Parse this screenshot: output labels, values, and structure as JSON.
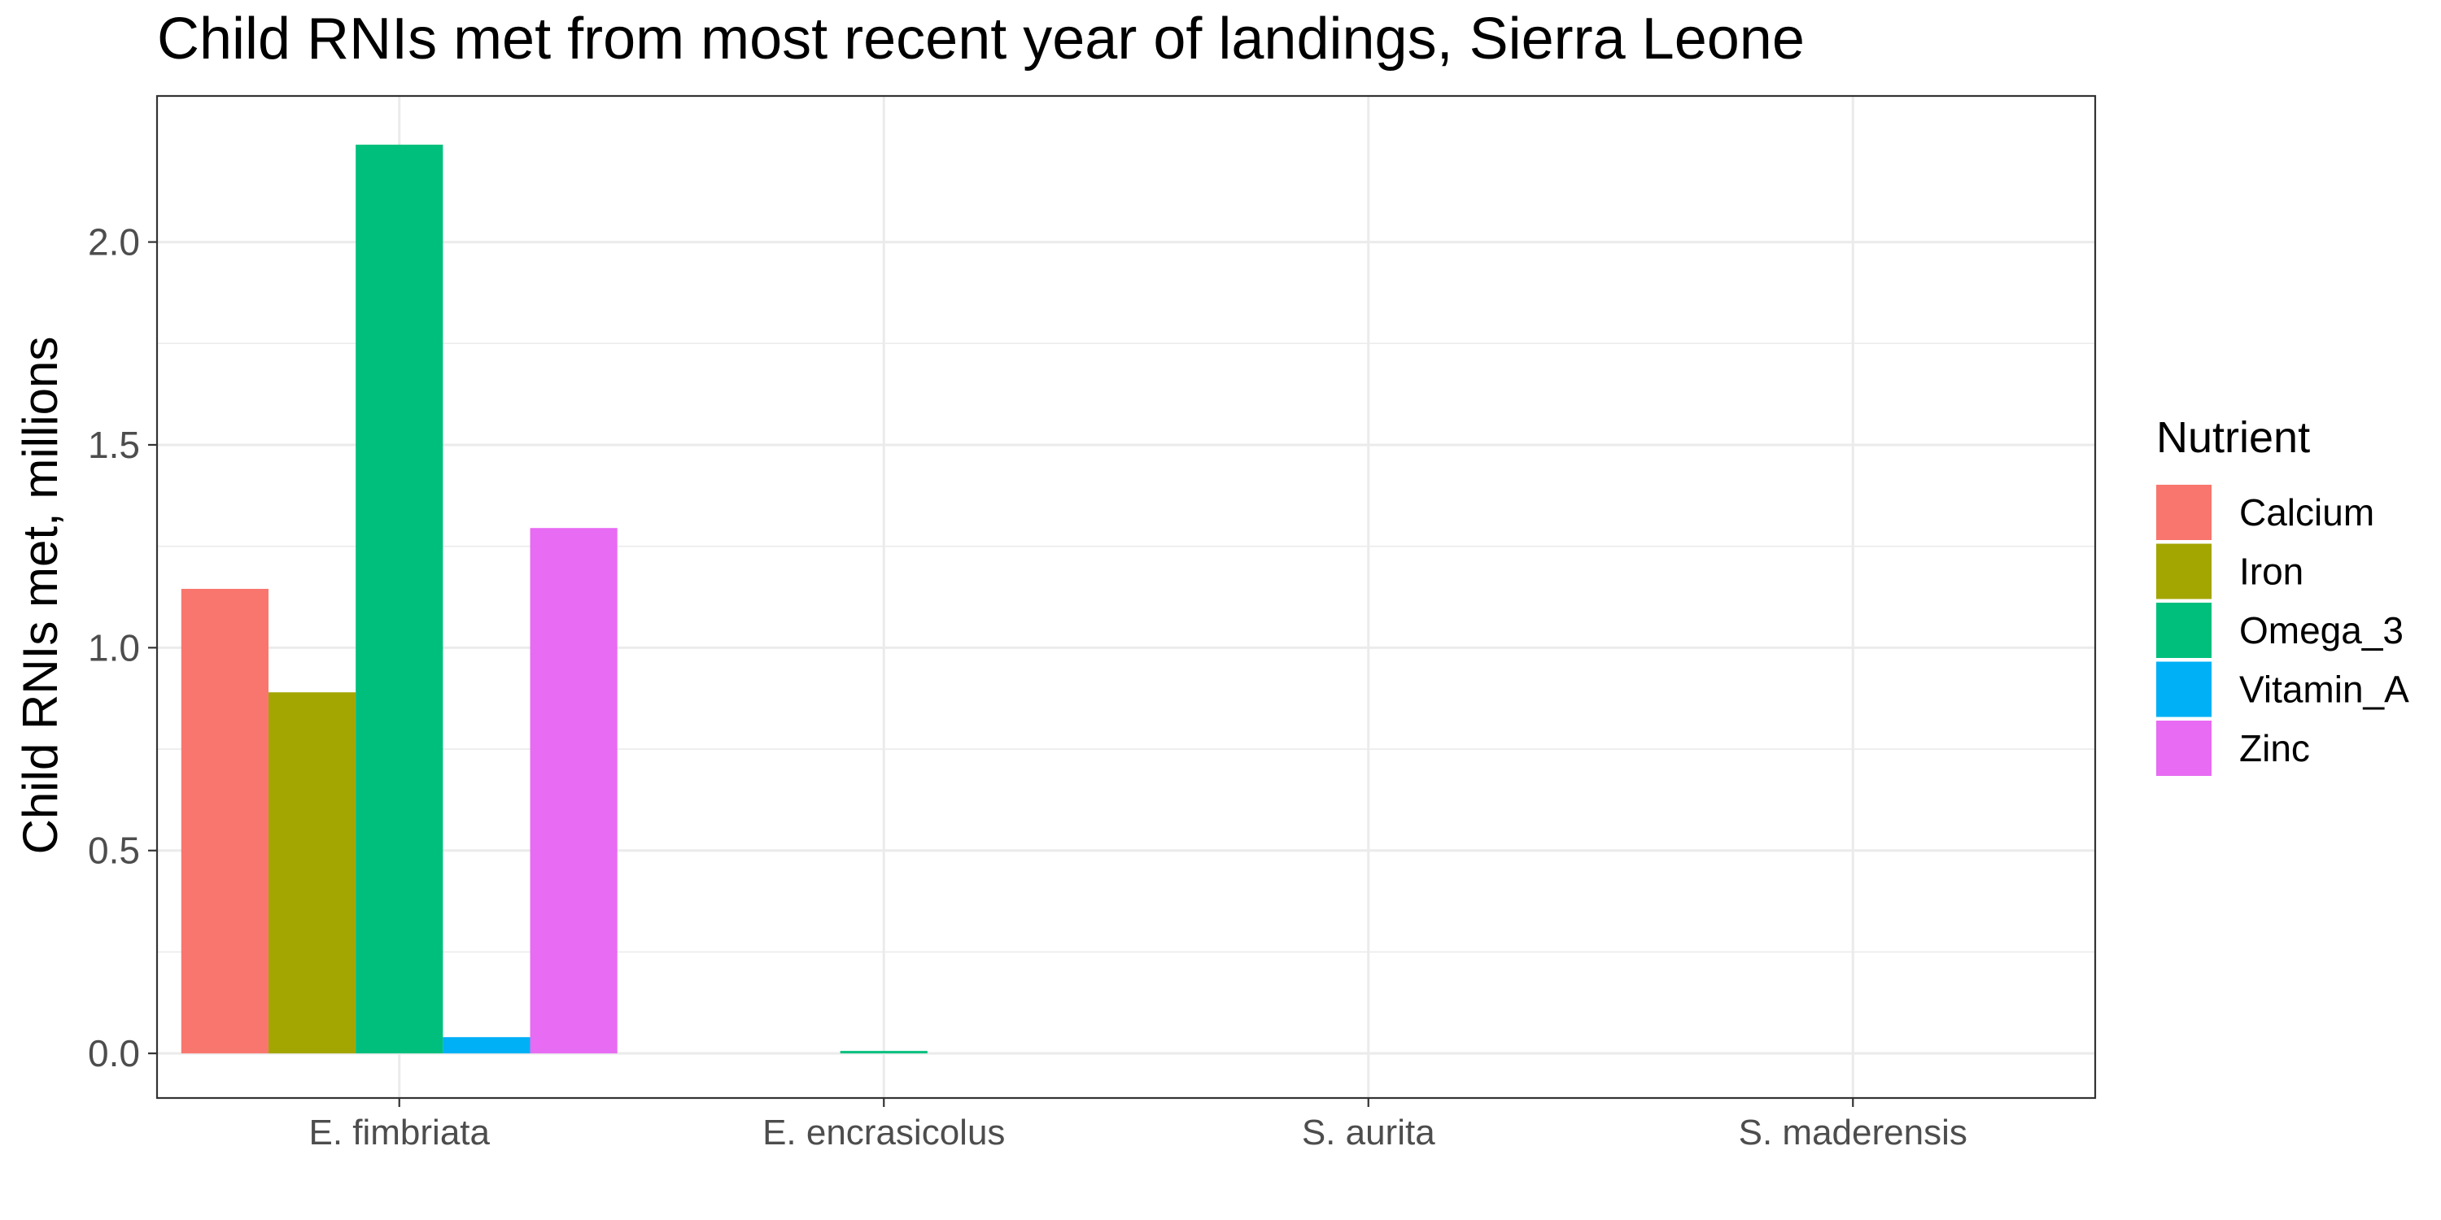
{
  "chart_data": {
    "type": "bar",
    "title": "Child RNIs met from most recent year of landings, Sierra Leone",
    "xlabel": "",
    "ylabel": "Child RNIs met, millions",
    "categories": [
      "E. fimbriata",
      "E. encrasicolus",
      "S. aurita",
      "S. maderensis"
    ],
    "ylim": [
      -0.11,
      2.36
    ],
    "yticks": [
      0.0,
      0.5,
      1.0,
      1.5,
      2.0
    ],
    "ytick_labels": [
      "0.0",
      "0.5",
      "1.0",
      "1.5",
      "2.0"
    ],
    "grid": true,
    "legend": {
      "title": "Nutrient",
      "position": "right"
    },
    "series": [
      {
        "name": "Calcium",
        "color": "#F8766D",
        "values": [
          1.145,
          0.0,
          0.0,
          0.0
        ]
      },
      {
        "name": "Iron",
        "color": "#A3A500",
        "values": [
          0.89,
          0.0,
          0.0,
          0.0
        ]
      },
      {
        "name": "Omega_3",
        "color": "#00BF7D",
        "values": [
          2.24,
          0.006,
          0.0,
          0.0
        ]
      },
      {
        "name": "Vitamin_A",
        "color": "#00B0F6",
        "values": [
          0.04,
          0.0,
          0.0,
          0.0
        ]
      },
      {
        "name": "Zinc",
        "color": "#E76BF3",
        "values": [
          1.295,
          0.0,
          0.0,
          0.0
        ]
      }
    ]
  }
}
